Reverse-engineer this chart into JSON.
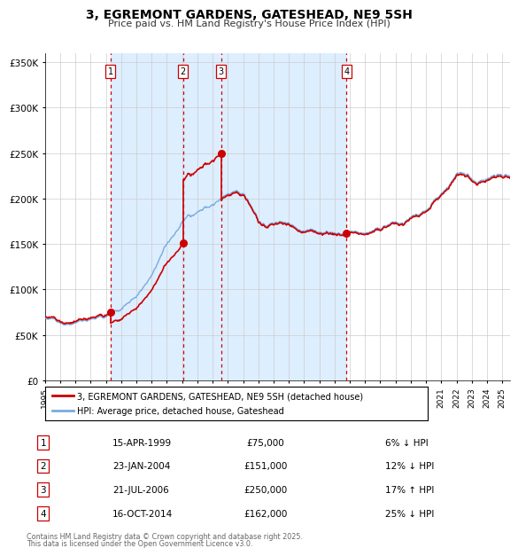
{
  "title": "3, EGREMONT GARDENS, GATESHEAD, NE9 5SH",
  "subtitle": "Price paid vs. HM Land Registry's House Price Index (HPI)",
  "transactions": [
    {
      "num": 1,
      "date_decimal": 1999.29,
      "price": 75000,
      "label": "15-APR-1999",
      "pct": "6%",
      "dir": "↓"
    },
    {
      "num": 2,
      "date_decimal": 2004.06,
      "price": 151000,
      "label": "23-JAN-2004",
      "pct": "12%",
      "dir": "↓"
    },
    {
      "num": 3,
      "date_decimal": 2006.55,
      "price": 250000,
      "label": "21-JUL-2006",
      "pct": "17%",
      "dir": "↑"
    },
    {
      "num": 4,
      "date_decimal": 2014.79,
      "price": 162000,
      "label": "16-OCT-2014",
      "pct": "25%",
      "dir": "↓"
    }
  ],
  "ylabel_ticks": [
    0,
    50000,
    100000,
    150000,
    200000,
    250000,
    300000,
    350000
  ],
  "ylabel_labels": [
    "£0",
    "£50K",
    "£100K",
    "£150K",
    "£200K",
    "£250K",
    "£300K",
    "£350K"
  ],
  "xmin": 1995.0,
  "xmax": 2025.5,
  "ymin": 0,
  "ymax": 360000,
  "property_color": "#cc0000",
  "hpi_color": "#7aaadd",
  "shade_color": "#ddeeff",
  "vline_color": "#cc0000",
  "legend_label_property": "3, EGREMONT GARDENS, GATESHEAD, NE9 5SH (detached house)",
  "legend_label_hpi": "HPI: Average price, detached house, Gateshead",
  "footnote1": "Contains HM Land Registry data © Crown copyright and database right 2025.",
  "footnote2": "This data is licensed under the Open Government Licence v3.0.",
  "table_rows": [
    {
      "num": "1",
      "date": "15-APR-1999",
      "price": "£75,000",
      "rel": "6% ↓ HPI"
    },
    {
      "num": "2",
      "date": "23-JAN-2004",
      "price": "£151,000",
      "rel": "12% ↓ HPI"
    },
    {
      "num": "3",
      "date": "21-JUL-2006",
      "price": "£250,000",
      "rel": "17% ↑ HPI"
    },
    {
      "num": "4",
      "date": "16-OCT-2014",
      "price": "£162,000",
      "rel": "25% ↓ HPI"
    }
  ]
}
